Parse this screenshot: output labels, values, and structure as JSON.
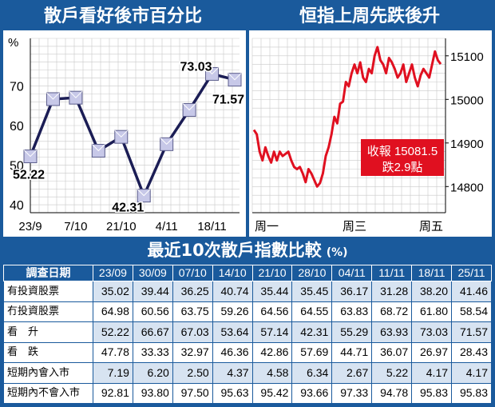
{
  "left_panel": {
    "title": "散戶看好後市百分比"
  },
  "right_panel": {
    "title": "恒指上周先跌後升",
    "box_line1": "收報 15081.5",
    "box_line2": "跌2.9點"
  },
  "table_section": {
    "title": "最近10次散戶指數比較",
    "unit": "(%)"
  },
  "chart_data": [
    {
      "type": "line",
      "title": "散戶看好後市百分比",
      "ylabel": "%",
      "ylim": [
        38,
        82
      ],
      "yticks": [
        40,
        50,
        60,
        70
      ],
      "grid": true,
      "x": [
        "23/09",
        "30/09",
        "07/10",
        "14/10",
        "21/10",
        "28/10",
        "04/11",
        "11/11",
        "18/11",
        "25/11"
      ],
      "xtick_labels": [
        "23/9",
        "7/10",
        "21/10",
        "4/11",
        "18/11"
      ],
      "values": [
        52.22,
        66.67,
        67.03,
        53.64,
        57.14,
        42.31,
        55.29,
        63.93,
        73.03,
        71.57
      ],
      "data_labels": [
        {
          "index": 0,
          "text": "52.22"
        },
        {
          "index": 5,
          "text": "42.31"
        },
        {
          "index": 8,
          "text": "73.03"
        },
        {
          "index": 9,
          "text": "71.57"
        }
      ],
      "colors": {
        "line": "#1b1d55",
        "marker": "#c7c8e8",
        "grid": "#c9c9c9"
      }
    },
    {
      "type": "line",
      "title": "恒指上周先跌後升",
      "ylim": [
        14740,
        15140
      ],
      "yticks": [
        14800,
        14900,
        15000,
        15100
      ],
      "grid": true,
      "xtick_labels": [
        "周一",
        "周三",
        "周五"
      ],
      "series": [
        {
          "values": [
            14930,
            14920,
            14880,
            14860,
            14890,
            14870,
            14855,
            14880,
            14860,
            14880,
            14870,
            14875,
            14880,
            14860,
            14845,
            14840,
            14845,
            14830,
            14810,
            14840,
            14830,
            14815,
            14800,
            14808,
            14830,
            14870,
            14890,
            14920,
            14960,
            14945,
            14990,
            14995,
            15040,
            15030,
            15060,
            15080,
            15060,
            15085,
            15050,
            15040,
            15070,
            15060,
            15100,
            15120,
            15090,
            15080,
            15060,
            15095,
            15085,
            15070,
            15050,
            15060,
            15080,
            15040,
            15060,
            15080,
            15050,
            15030,
            15055,
            15070,
            15060,
            15050,
            15080,
            15110,
            15090,
            15081
          ]
        }
      ],
      "colors": {
        "line": "#e01020",
        "box": "#e01020",
        "box_text": "#ffffff"
      }
    }
  ],
  "table": {
    "header_label": "調查日期",
    "columns": [
      "23/09",
      "30/09",
      "07/10",
      "14/10",
      "21/10",
      "28/10",
      "04/11",
      "11/11",
      "18/11",
      "25/11"
    ],
    "rows": [
      {
        "label": "有投資股票",
        "values": [
          "35.02",
          "39.44",
          "36.25",
          "40.74",
          "35.44",
          "35.45",
          "36.17",
          "31.28",
          "38.20",
          "41.46"
        ]
      },
      {
        "label": "冇投資股票",
        "values": [
          "64.98",
          "60.56",
          "63.75",
          "59.26",
          "64.56",
          "64.55",
          "63.83",
          "68.72",
          "61.80",
          "58.54"
        ]
      },
      {
        "label": "看　升",
        "values": [
          "52.22",
          "66.67",
          "67.03",
          "53.64",
          "57.14",
          "42.31",
          "55.29",
          "63.93",
          "73.03",
          "71.57"
        ]
      },
      {
        "label": "看　跌",
        "values": [
          "47.78",
          "33.33",
          "32.97",
          "46.36",
          "42.86",
          "57.69",
          "44.71",
          "36.07",
          "26.97",
          "28.43"
        ]
      },
      {
        "label": "短期內會入市",
        "values": [
          "7.19",
          "6.20",
          "2.50",
          "4.37",
          "4.58",
          "6.34",
          "2.67",
          "5.22",
          "4.17",
          "4.17"
        ]
      },
      {
        "label": "短期內不會入市",
        "values": [
          "92.81",
          "93.80",
          "97.50",
          "95.63",
          "95.42",
          "93.66",
          "97.33",
          "94.78",
          "95.83",
          "95.83"
        ]
      }
    ]
  }
}
